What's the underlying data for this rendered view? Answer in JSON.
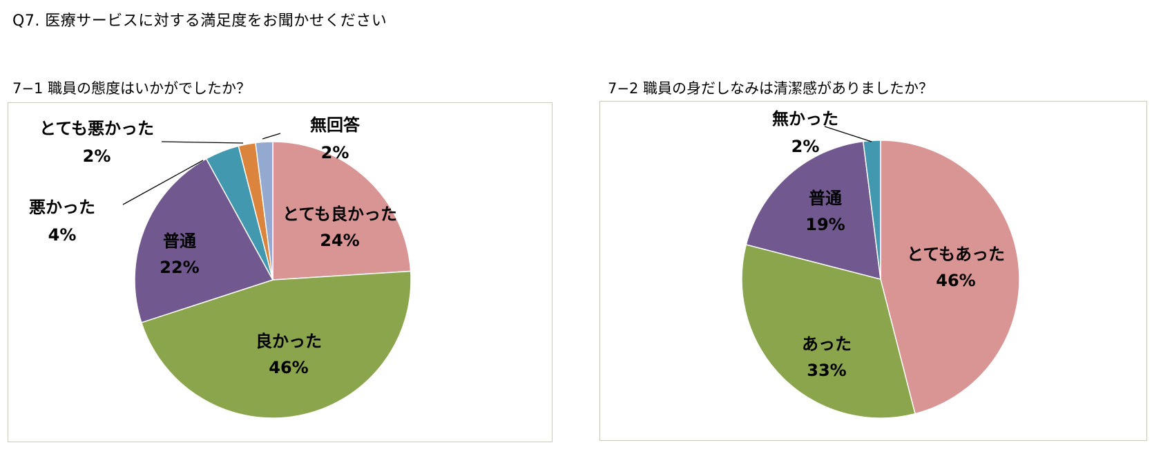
{
  "page": {
    "heading": "Q7.  医療サービスに対する満足度をお聞かせください"
  },
  "chart_data": [
    {
      "type": "pie",
      "title": "7−1  職員の態度はいかがでしたか？",
      "slices": [
        {
          "label": "とても良かった",
          "value": 24,
          "display": "24%",
          "color": "#d99594"
        },
        {
          "label": "良かった",
          "value": 46,
          "display": "46%",
          "color": "#8ba54d"
        },
        {
          "label": "普通",
          "value": 22,
          "display": "22%",
          "color": "#71588f"
        },
        {
          "label": "悪かった",
          "value": 4,
          "display": "4%",
          "color": "#4198af"
        },
        {
          "label": "とても悪かった",
          "value": 2,
          "display": "2%",
          "color": "#db843d"
        },
        {
          "label": "無回答",
          "value": 2,
          "display": "2%",
          "color": "#93a9cf"
        }
      ]
    },
    {
      "type": "pie",
      "title": "7−2  職員の身だしなみは清潔感がありましたか？",
      "slices": [
        {
          "label": "とてもあった",
          "value": 46,
          "display": "46%",
          "color": "#d99594"
        },
        {
          "label": "あった",
          "value": 33,
          "display": "33%",
          "color": "#8ba54d"
        },
        {
          "label": "普通",
          "value": 19,
          "display": "19%",
          "color": "#71588f"
        },
        {
          "label": "無かった",
          "value": 2,
          "display": "2%",
          "color": "#4198af"
        }
      ]
    }
  ]
}
